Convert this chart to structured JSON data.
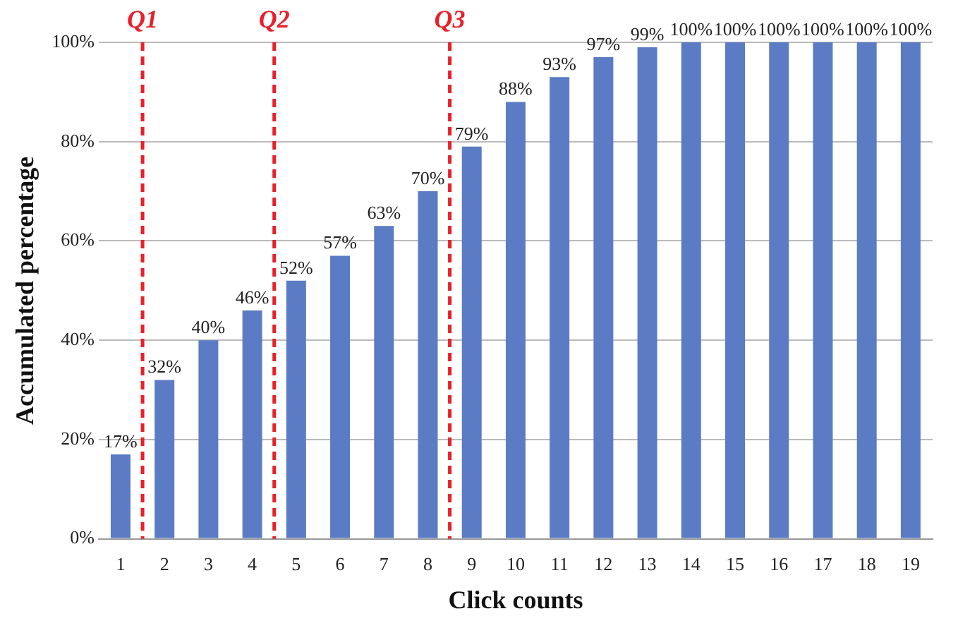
{
  "chart_data": {
    "type": "bar",
    "xlabel": "Click counts",
    "ylabel": "Accumulated percentage",
    "x": [
      1,
      2,
      3,
      4,
      5,
      6,
      7,
      8,
      9,
      10,
      11,
      12,
      13,
      14,
      15,
      16,
      17,
      18,
      19
    ],
    "values": [
      17,
      32,
      40,
      46,
      52,
      57,
      63,
      70,
      79,
      88,
      93,
      97,
      99,
      100,
      100,
      100,
      100,
      100,
      100
    ],
    "value_labels": [
      "17%",
      "32%",
      "40%",
      "46%",
      "52%",
      "57%",
      "63%",
      "70%",
      "79%",
      "88%",
      "93%",
      "97%",
      "99%",
      "100%",
      "100%",
      "100%",
      "100%",
      "100%",
      "100%"
    ],
    "color": "#5b7bc4",
    "xlim": [
      0.5,
      19.5
    ],
    "xticks": [
      1,
      2,
      3,
      4,
      5,
      6,
      7,
      8,
      9,
      10,
      11,
      12,
      13,
      14,
      15,
      16,
      17,
      18,
      19
    ],
    "ylim": [
      0,
      100
    ],
    "yticks": [
      {
        "value": 0,
        "label": "0%"
      },
      {
        "value": 20,
        "label": "20%"
      },
      {
        "value": 40,
        "label": "40%"
      },
      {
        "value": 60,
        "label": "60%"
      },
      {
        "value": 80,
        "label": "80%"
      },
      {
        "value": 100,
        "label": "100%"
      }
    ],
    "grid": "y",
    "ref_lines": [
      {
        "axis": "x",
        "value": 1.5,
        "label": "Q1",
        "color": "#e8202a",
        "line_style": "dashed"
      },
      {
        "axis": "x",
        "value": 4.5,
        "label": "Q2",
        "color": "#e8202a",
        "line_style": "dashed"
      },
      {
        "axis": "x",
        "value": 8.5,
        "label": "Q3",
        "color": "#e8202a",
        "line_style": "dashed"
      }
    ]
  }
}
